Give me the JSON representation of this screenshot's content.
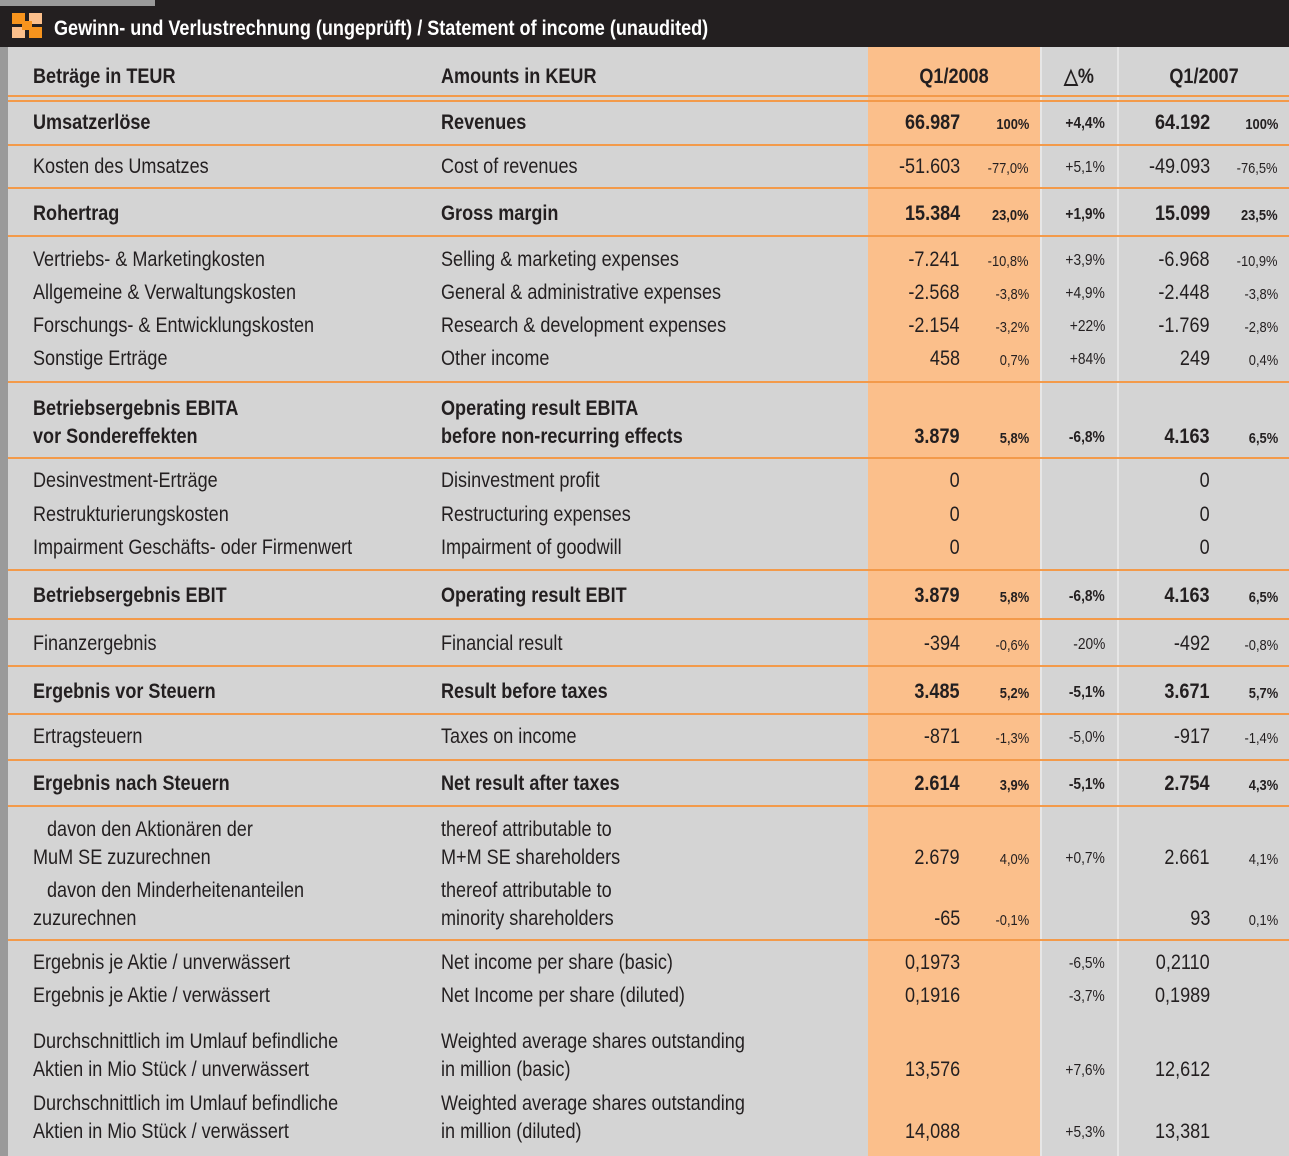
{
  "header": {
    "title": "Gewinn- und Verlustrechnung (ungeprüft) / Statement of income (unaudited)"
  },
  "table": {
    "columns": [
      "Beträge in TEUR",
      "Amounts in KEUR",
      "Q1/2008",
      "△%",
      "Q1/2007"
    ],
    "rows": [
      {
        "de": [
          "Umsatzerlöse"
        ],
        "en": [
          "Revenues"
        ],
        "q1_2008": "66.987",
        "q1_2008_pct": "100%",
        "delta": "+4,4%",
        "q1_2007": "64.192",
        "q1_2007_pct": "100%",
        "bold": true
      },
      {
        "de": [
          "Kosten des Umsatzes"
        ],
        "en": [
          "Cost of revenues"
        ],
        "q1_2008": "-51.603",
        "q1_2008_pct": "-77,0%",
        "delta": "+5,1%",
        "q1_2007": "-49.093",
        "q1_2007_pct": "-76,5%",
        "bold": false
      },
      {
        "de": [
          "Rohertrag"
        ],
        "en": [
          "Gross margin"
        ],
        "q1_2008": "15.384",
        "q1_2008_pct": "23,0%",
        "delta": "+1,9%",
        "q1_2007": "15.099",
        "q1_2007_pct": "23,5%",
        "bold": true
      },
      {
        "de": [
          "Vertriebs- & Marketingkosten"
        ],
        "en": [
          "Selling & marketing expenses"
        ],
        "q1_2008": "-7.241",
        "q1_2008_pct": "-10,8%",
        "delta": "+3,9%",
        "q1_2007": "-6.968",
        "q1_2007_pct": "-10,9%",
        "bold": false
      },
      {
        "de": [
          "Allgemeine & Verwaltungskosten"
        ],
        "en": [
          "General & administrative expenses"
        ],
        "q1_2008": "-2.568",
        "q1_2008_pct": "-3,8%",
        "delta": "+4,9%",
        "q1_2007": "-2.448",
        "q1_2007_pct": "-3,8%",
        "bold": false
      },
      {
        "de": [
          "Forschungs- & Entwicklungskosten"
        ],
        "en": [
          "Research & development expenses"
        ],
        "q1_2008": "-2.154",
        "q1_2008_pct": "-3,2%",
        "delta": "+22%",
        "q1_2007": "-1.769",
        "q1_2007_pct": "-2,8%",
        "bold": false
      },
      {
        "de": [
          "Sonstige Erträge"
        ],
        "en": [
          "Other income"
        ],
        "q1_2008": "458",
        "q1_2008_pct": "0,7%",
        "delta": "+84%",
        "q1_2007": "249",
        "q1_2007_pct": "0,4%",
        "bold": false
      },
      {
        "de": [
          "Betriebsergebnis EBITA",
          "vor Sondereffekten"
        ],
        "en": [
          "Operating result EBITA",
          "before non-recurring effects"
        ],
        "q1_2008": "3.879",
        "q1_2008_pct": "5,8%",
        "delta": "-6,8%",
        "q1_2007": "4.163",
        "q1_2007_pct": "6,5%",
        "bold": true
      },
      {
        "de": [
          "Desinvestment-Erträge"
        ],
        "en": [
          "Disinvestment profit"
        ],
        "q1_2008": "0",
        "q1_2008_pct": null,
        "delta": null,
        "q1_2007": "0",
        "q1_2007_pct": null,
        "bold": false
      },
      {
        "de": [
          "Restrukturierungskosten"
        ],
        "en": [
          "Restructuring expenses"
        ],
        "q1_2008": "0",
        "q1_2008_pct": null,
        "delta": null,
        "q1_2007": "0",
        "q1_2007_pct": null,
        "bold": false
      },
      {
        "de": [
          "Impairment Geschäfts- oder Firmenwert"
        ],
        "en": [
          "Impairment of goodwill"
        ],
        "q1_2008": "0",
        "q1_2008_pct": null,
        "delta": null,
        "q1_2007": "0",
        "q1_2007_pct": null,
        "bold": false
      },
      {
        "de": [
          "Betriebsergebnis EBIT"
        ],
        "en": [
          "Operating result EBIT"
        ],
        "q1_2008": "3.879",
        "q1_2008_pct": "5,8%",
        "delta": "-6,8%",
        "q1_2007": "4.163",
        "q1_2007_pct": "6,5%",
        "bold": true
      },
      {
        "de": [
          "Finanzergebnis"
        ],
        "en": [
          "Financial result"
        ],
        "q1_2008": "-394",
        "q1_2008_pct": "-0,6%",
        "delta": "-20%",
        "q1_2007": "-492",
        "q1_2007_pct": "-0,8%",
        "bold": false
      },
      {
        "de": [
          "Ergebnis vor Steuern"
        ],
        "en": [
          "Result before taxes"
        ],
        "q1_2008": "3.485",
        "q1_2008_pct": "5,2%",
        "delta": "-5,1%",
        "q1_2007": "3.671",
        "q1_2007_pct": "5,7%",
        "bold": true
      },
      {
        "de": [
          "Ertragsteuern"
        ],
        "en": [
          "Taxes on income"
        ],
        "q1_2008": "-871",
        "q1_2008_pct": "-1,3%",
        "delta": "-5,0%",
        "q1_2007": "-917",
        "q1_2007_pct": "-1,4%",
        "bold": false
      },
      {
        "de": [
          "Ergebnis nach Steuern"
        ],
        "en": [
          "Net result after taxes"
        ],
        "q1_2008": "2.614",
        "q1_2008_pct": "3,9%",
        "delta": "-5,1%",
        "q1_2007": "2.754",
        "q1_2007_pct": "4,3%",
        "bold": true
      },
      {
        "de": [
          "davon den Aktionären der",
          "MuM SE zuzurechnen"
        ],
        "en": [
          "thereof attributable to",
          "M+M SE shareholders"
        ],
        "q1_2008": "2.679",
        "q1_2008_pct": "4,0%",
        "delta": "+0,7%",
        "q1_2007": "2.661",
        "q1_2007_pct": "4,1%",
        "bold": false
      },
      {
        "de": [
          "davon den Minderheitenanteilen",
          "zuzurechnen"
        ],
        "en": [
          "thereof attributable to",
          "minority shareholders"
        ],
        "q1_2008": "-65",
        "q1_2008_pct": "-0,1%",
        "delta": null,
        "q1_2007": "93",
        "q1_2007_pct": "0,1%",
        "bold": false
      },
      {
        "de": [
          "Ergebnis je Aktie / unverwässert"
        ],
        "en": [
          "Net income per share (basic)"
        ],
        "q1_2008": "0,1973",
        "q1_2008_pct": null,
        "delta": "-6,5%",
        "q1_2007": "0,2110",
        "q1_2007_pct": null,
        "bold": false
      },
      {
        "de": [
          "Ergebnis je Aktie / verwässert"
        ],
        "en": [
          "Net Income per share (diluted)"
        ],
        "q1_2008": "0,1916",
        "q1_2008_pct": null,
        "delta": "-3,7%",
        "q1_2007": "0,1989",
        "q1_2007_pct": null,
        "bold": false
      },
      {
        "de": [
          "Durchschnittlich im Umlauf befindliche",
          "Aktien in Mio Stück / unverwässert"
        ],
        "en": [
          "Weighted average shares outstanding",
          "in million (basic)"
        ],
        "q1_2008": "13,576",
        "q1_2008_pct": null,
        "delta": "+7,6%",
        "q1_2007": "12,612",
        "q1_2007_pct": null,
        "bold": false
      },
      {
        "de": [
          "Durchschnittlich im Umlauf befindliche",
          "Aktien in Mio Stück / verwässert"
        ],
        "en": [
          "Weighted average shares outstanding",
          "in million (diluted)"
        ],
        "q1_2008": "14,088",
        "q1_2008_pct": null,
        "delta": "+5,3%",
        "q1_2007": "13,381",
        "q1_2007_pct": null,
        "bold": false
      }
    ]
  }
}
